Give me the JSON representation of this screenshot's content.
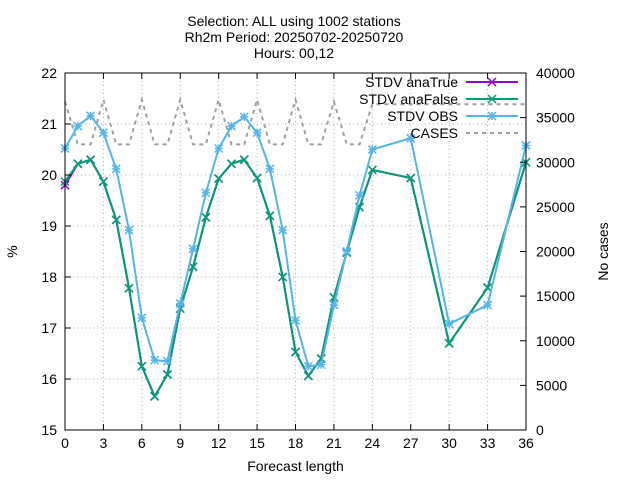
{
  "chart_data": {
    "type": "line",
    "title_lines": [
      "Selection: ALL using  1002 stations",
      "Rh2m   Period: 20250702-20250720",
      "Hours: 00,12"
    ],
    "xlabel": "Forecast length",
    "ylabel": "%",
    "y2label": "No cases",
    "xlim": [
      0,
      36
    ],
    "ylim": [
      15,
      22
    ],
    "y2lim": [
      0,
      40000
    ],
    "xticks": [
      0,
      3,
      6,
      9,
      12,
      15,
      18,
      21,
      24,
      27,
      30,
      33,
      36
    ],
    "yticks": [
      15,
      16,
      17,
      18,
      19,
      20,
      21,
      22
    ],
    "y2ticks": [
      0,
      5000,
      10000,
      15000,
      20000,
      25000,
      30000,
      35000,
      40000
    ],
    "grid": true,
    "legend_position": "top-right",
    "series": [
      {
        "name": "STDV anaTrue",
        "axis": "y",
        "color": "#9400d3",
        "dash": false,
        "marker": "cross",
        "x": [
          0,
          1,
          2,
          3,
          4,
          5,
          6,
          7,
          8,
          9,
          10,
          11,
          12,
          13,
          14,
          15,
          16,
          17,
          18,
          19,
          20,
          21,
          22,
          23,
          24,
          27,
          30,
          33,
          36
        ],
        "y": [
          19.8,
          20.22,
          20.3,
          19.87,
          19.12,
          17.78,
          16.25,
          15.66,
          16.09,
          17.38,
          18.2,
          19.17,
          19.93,
          20.22,
          20.3,
          19.94,
          19.2,
          18.0,
          16.53,
          16.06,
          16.4,
          17.6,
          18.48,
          19.37,
          20.1,
          19.94,
          16.7,
          17.79,
          20.25
        ]
      },
      {
        "name": "STDV anaFalse",
        "axis": "y",
        "color": "#009e73",
        "dash": false,
        "marker": "cross",
        "x": [
          0,
          1,
          2,
          3,
          4,
          5,
          6,
          7,
          8,
          9,
          10,
          11,
          12,
          13,
          14,
          15,
          16,
          17,
          18,
          19,
          20,
          21,
          22,
          23,
          24,
          27,
          30,
          33,
          36
        ],
        "y": [
          19.87,
          20.22,
          20.3,
          19.87,
          19.12,
          17.78,
          16.25,
          15.66,
          16.09,
          17.38,
          18.2,
          19.17,
          19.93,
          20.22,
          20.3,
          19.94,
          19.2,
          18.0,
          16.53,
          16.06,
          16.4,
          17.6,
          18.48,
          19.37,
          20.1,
          19.94,
          16.7,
          17.79,
          20.25
        ]
      },
      {
        "name": "STDV OBS",
        "axis": "y",
        "color": "#56b4e9",
        "dash": false,
        "marker": "star",
        "x": [
          0,
          1,
          2,
          3,
          4,
          5,
          6,
          7,
          8,
          9,
          10,
          11,
          12,
          13,
          14,
          15,
          16,
          17,
          18,
          19,
          20,
          21,
          22,
          23,
          24,
          27,
          30,
          33,
          36
        ],
        "y": [
          20.52,
          20.96,
          21.16,
          20.83,
          20.12,
          18.92,
          17.2,
          16.37,
          16.35,
          17.48,
          18.55,
          19.65,
          20.52,
          20.96,
          21.14,
          20.83,
          20.12,
          18.92,
          17.15,
          16.25,
          16.28,
          17.45,
          18.5,
          19.6,
          20.5,
          20.72,
          17.08,
          17.45,
          20.58
        ]
      },
      {
        "name": "CASES",
        "axis": "y2",
        "color": "#a0a0a0",
        "dash": true,
        "marker": "none",
        "x": [
          0,
          1,
          2,
          3,
          4,
          5,
          6,
          7,
          8,
          9,
          10,
          11,
          12,
          13,
          14,
          15,
          16,
          17,
          18,
          19,
          20,
          21,
          22,
          23,
          24,
          27,
          30,
          33,
          36
        ],
        "y": [
          36800,
          32000,
          32000,
          37000,
          32000,
          32000,
          37000,
          32000,
          32000,
          37000,
          32000,
          32000,
          37000,
          32000,
          32000,
          37000,
          32000,
          32000,
          37000,
          32000,
          32000,
          36800,
          32000,
          32000,
          36500,
          36500,
          36500,
          36500,
          36500
        ]
      }
    ]
  }
}
